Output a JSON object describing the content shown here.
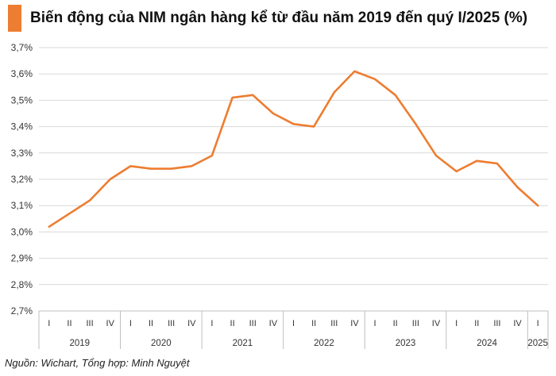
{
  "colors": {
    "accent": "#ED7D31",
    "grid": "#D9D9D9",
    "axis": "#BFBFBF"
  },
  "title": "Biến động của NIM ngân hàng kể từ đầu năm 2019 đến quý I/2025 (%)",
  "source": "Nguồn: Wichart, Tổng hợp: Minh Nguyệt",
  "chart_data": {
    "type": "line",
    "title": "Biến động của NIM ngân hàng kể từ đầu năm 2019 đến quý I/2025 (%)",
    "xlabel": "",
    "ylabel": "",
    "ylim": [
      2.7,
      3.7
    ],
    "yticks": [
      "3,7%",
      "3,6%",
      "3,5%",
      "3,4%",
      "3,3%",
      "3,2%",
      "3,1%",
      "3,0%",
      "2,9%",
      "2,8%",
      "2,7%"
    ],
    "grid": true,
    "legend": "none",
    "categories": [
      "I",
      "II",
      "III",
      "IV",
      "I",
      "II",
      "III",
      "IV",
      "I",
      "II",
      "III",
      "IV",
      "I",
      "II",
      "III",
      "IV",
      "I",
      "II",
      "III",
      "IV",
      "I",
      "II",
      "III",
      "IV",
      "I"
    ],
    "years": [
      {
        "label": "2019",
        "quarters": 4
      },
      {
        "label": "2020",
        "quarters": 4
      },
      {
        "label": "2021",
        "quarters": 4
      },
      {
        "label": "2022",
        "quarters": 4
      },
      {
        "label": "2023",
        "quarters": 4
      },
      {
        "label": "2024",
        "quarters": 4
      },
      {
        "label": "2025",
        "quarters": 1
      }
    ],
    "series": [
      {
        "name": "NIM",
        "values": [
          3.02,
          3.07,
          3.12,
          3.2,
          3.25,
          3.24,
          3.24,
          3.25,
          3.29,
          3.51,
          3.52,
          3.45,
          3.41,
          3.4,
          3.53,
          3.61,
          3.58,
          3.52,
          3.41,
          3.29,
          3.23,
          3.27,
          3.26,
          3.17,
          3.1
        ]
      }
    ]
  }
}
